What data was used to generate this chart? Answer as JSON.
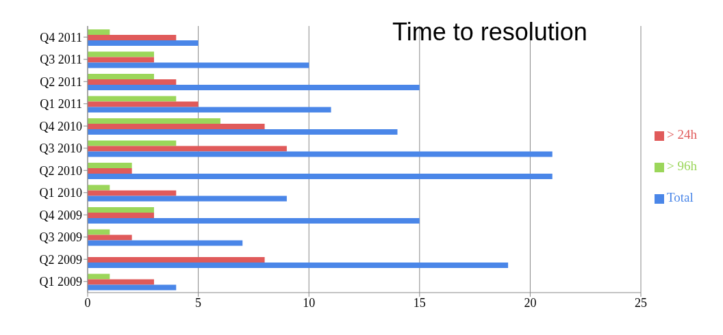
{
  "chart_data": {
    "type": "bar",
    "orientation": "horizontal",
    "title": "Time to resolution",
    "categories": [
      "Q4 2011",
      "Q3 2011",
      "Q2 2011",
      "Q1 2011",
      "Q4 2010",
      "Q3 2010",
      "Q2 2010",
      "Q1 2010",
      "Q4 2009",
      "Q3 2009",
      "Q2 2009",
      "Q1 2009"
    ],
    "series": [
      {
        "name": "> 96h",
        "color": "#9bd65a",
        "values": [
          1,
          3,
          3,
          4,
          6,
          4,
          2,
          1,
          3,
          1,
          0,
          1
        ]
      },
      {
        "name": "> 24h",
        "color": "#e05a5a",
        "values": [
          4,
          3,
          4,
          5,
          8,
          9,
          2,
          4,
          3,
          2,
          8,
          3
        ]
      },
      {
        "name": "Total",
        "color": "#4a86e8",
        "values": [
          5,
          10,
          15,
          11,
          14,
          21,
          21,
          9,
          15,
          7,
          19,
          4
        ]
      }
    ],
    "xlim": [
      0,
      25
    ],
    "xticks": [
      0,
      5,
      10,
      15,
      20,
      25
    ],
    "grid": "x",
    "legend": "right"
  }
}
